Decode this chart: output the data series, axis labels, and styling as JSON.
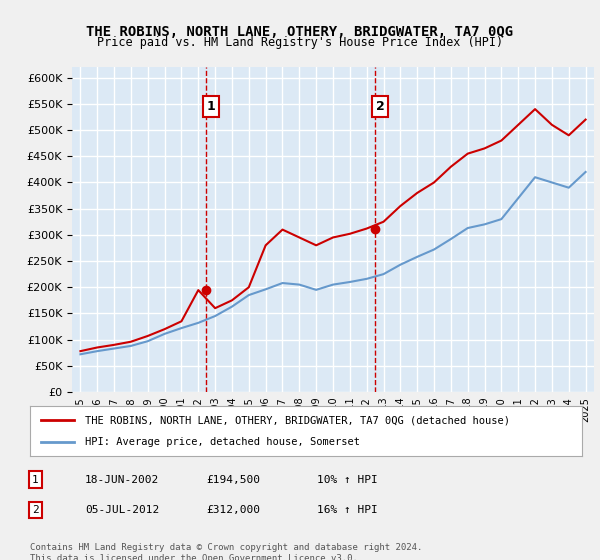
{
  "title": "THE ROBINS, NORTH LANE, OTHERY, BRIDGWATER, TA7 0QG",
  "subtitle": "Price paid vs. HM Land Registry's House Price Index (HPI)",
  "background_color": "#dce9f5",
  "plot_bg_color": "#dce9f5",
  "grid_color": "#ffffff",
  "red_line_color": "#cc0000",
  "blue_line_color": "#6699cc",
  "ylim": [
    0,
    620000
  ],
  "yticks": [
    0,
    50000,
    100000,
    150000,
    200000,
    250000,
    300000,
    350000,
    400000,
    450000,
    500000,
    550000,
    600000
  ],
  "xlabel_years": [
    "1995",
    "1996",
    "1997",
    "1998",
    "1999",
    "2000",
    "2001",
    "2002",
    "2003",
    "2004",
    "2005",
    "2006",
    "2007",
    "2008",
    "2009",
    "2010",
    "2011",
    "2012",
    "2013",
    "2014",
    "2015",
    "2016",
    "2017",
    "2018",
    "2019",
    "2020",
    "2021",
    "2022",
    "2023",
    "2024",
    "2025"
  ],
  "sale1_year": 2002.47,
  "sale1_price": 194500,
  "sale1_label": "1",
  "sale2_year": 2012.51,
  "sale2_price": 312000,
  "sale2_label": "2",
  "legend_red_label": "THE ROBINS, NORTH LANE, OTHERY, BRIDGWATER, TA7 0QG (detached house)",
  "legend_blue_label": "HPI: Average price, detached house, Somerset",
  "table_row1": [
    "1",
    "18-JUN-2002",
    "£194,500",
    "10% ↑ HPI"
  ],
  "table_row2": [
    "2",
    "05-JUL-2012",
    "£312,000",
    "16% ↑ HPI"
  ],
  "footnote": "Contains HM Land Registry data © Crown copyright and database right 2024.\nThis data is licensed under the Open Government Licence v3.0.",
  "hpi_years": [
    1995,
    1996,
    1997,
    1998,
    1999,
    2000,
    2001,
    2002,
    2003,
    2004,
    2005,
    2006,
    2007,
    2008,
    2009,
    2010,
    2011,
    2012,
    2013,
    2014,
    2015,
    2016,
    2017,
    2018,
    2019,
    2020,
    2021,
    2022,
    2023,
    2024,
    2025
  ],
  "hpi_values": [
    72000,
    78000,
    83000,
    88000,
    97000,
    111000,
    122000,
    132000,
    145000,
    163000,
    185000,
    196000,
    208000,
    205000,
    195000,
    205000,
    210000,
    216000,
    225000,
    243000,
    258000,
    272000,
    292000,
    313000,
    320000,
    330000,
    370000,
    410000,
    400000,
    390000,
    420000
  ],
  "red_years": [
    1995,
    1996,
    1997,
    1998,
    1999,
    2000,
    2001,
    2002,
    2003,
    2004,
    2005,
    2006,
    2007,
    2008,
    2009,
    2010,
    2011,
    2012,
    2013,
    2014,
    2015,
    2016,
    2017,
    2018,
    2019,
    2020,
    2021,
    2022,
    2023,
    2024,
    2025
  ],
  "red_values": [
    78000,
    85000,
    90000,
    96000,
    107000,
    120000,
    135000,
    194500,
    160000,
    175000,
    200000,
    280000,
    310000,
    295000,
    280000,
    295000,
    302000,
    312000,
    325000,
    355000,
    380000,
    400000,
    430000,
    455000,
    465000,
    480000,
    510000,
    540000,
    510000,
    490000,
    520000
  ]
}
